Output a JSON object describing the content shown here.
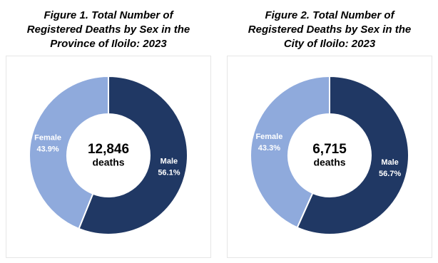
{
  "chart_data": [
    {
      "type": "pie",
      "title": "Figure 1. Total Number of Registered Deaths by Sex in the Province of Iloilo: 2023",
      "categories": [
        "Male",
        "Female"
      ],
      "values": [
        56.1,
        43.9
      ],
      "value_labels": [
        "56.1%",
        "43.9%"
      ],
      "colors": [
        "#203864",
        "#8faadc"
      ],
      "donut": true,
      "center_value": {
        "value": 12846,
        "label": "12,846"
      },
      "center_text": "deaths"
    },
    {
      "type": "pie",
      "title": "Figure 2. Total Number of Registered Deaths by Sex in the City of Iloilo: 2023",
      "categories": [
        "Male",
        "Female"
      ],
      "values": [
        56.7,
        43.3
      ],
      "value_labels": [
        "56.7%",
        "43.3%"
      ],
      "colors": [
        "#203864",
        "#8faadc"
      ],
      "donut": true,
      "center_value": {
        "value": 6715,
        "label": "6,715"
      },
      "center_text": "deaths"
    }
  ]
}
